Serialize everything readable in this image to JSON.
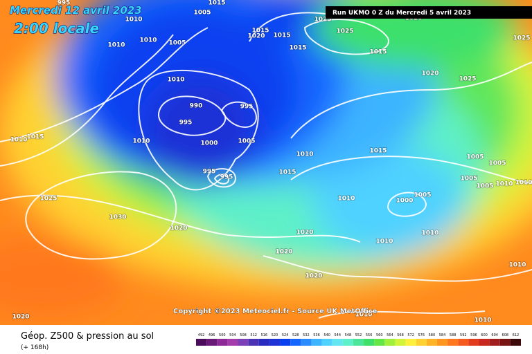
{
  "header": {
    "title": "Mercredi 12 avril 2023",
    "subtitle": "2:00 locale"
  },
  "run_label": "Run UKMO 0 Z du Mercredi 5 avril 2023",
  "copyright": "Copyright ©2023 Meteociel.fr - Source UK MetOffice",
  "footer": {
    "title": "Géop. Z500 & pression au sol",
    "subtitle": "(+ 168h)"
  },
  "colorbar": {
    "labels": [
      492,
      496,
      500,
      504,
      508,
      512,
      516,
      520,
      524,
      528,
      532,
      536,
      540,
      544,
      548,
      552,
      556,
      560,
      564,
      568,
      572,
      576,
      580,
      584,
      588,
      592,
      596,
      600,
      604,
      608,
      612
    ],
    "colors": [
      "#4b0c5c",
      "#6a1b7a",
      "#8e2a98",
      "#a43cab",
      "#7b3fb8",
      "#4b33b5",
      "#2a2cc0",
      "#1e32d6",
      "#0a3ff0",
      "#1466ff",
      "#2a8cff",
      "#3cb4ff",
      "#50d2ff",
      "#64e6f0",
      "#5ef0c8",
      "#4be69a",
      "#3ee06a",
      "#64e646",
      "#a0f03c",
      "#d2f53c",
      "#fff03c",
      "#ffd232",
      "#ffb428",
      "#ff9620",
      "#ff781e",
      "#f55a1e",
      "#e13c1e",
      "#c8281e",
      "#a01e1e",
      "#781414",
      "#3c0a0a"
    ]
  },
  "isobar_labels": [
    995,
    1005,
    1015,
    1010,
    1025,
    1020,
    1015,
    1020,
    1015,
    1025,
    1015,
    1015,
    1025,
    1010,
    1010,
    1005,
    1010,
    1020,
    1025,
    990,
    995,
    995,
    1010,
    1015,
    1010,
    1000,
    1005,
    1010,
    1015,
    1005,
    1005,
    995,
    995,
    1015,
    1005,
    1005,
    1010,
    1010,
    1025,
    1010,
    1000,
    1005,
    1030,
    1020,
    1020,
    1010,
    1020,
    1010,
    1020,
    1010,
    1010,
    1010,
    1020
  ]
}
